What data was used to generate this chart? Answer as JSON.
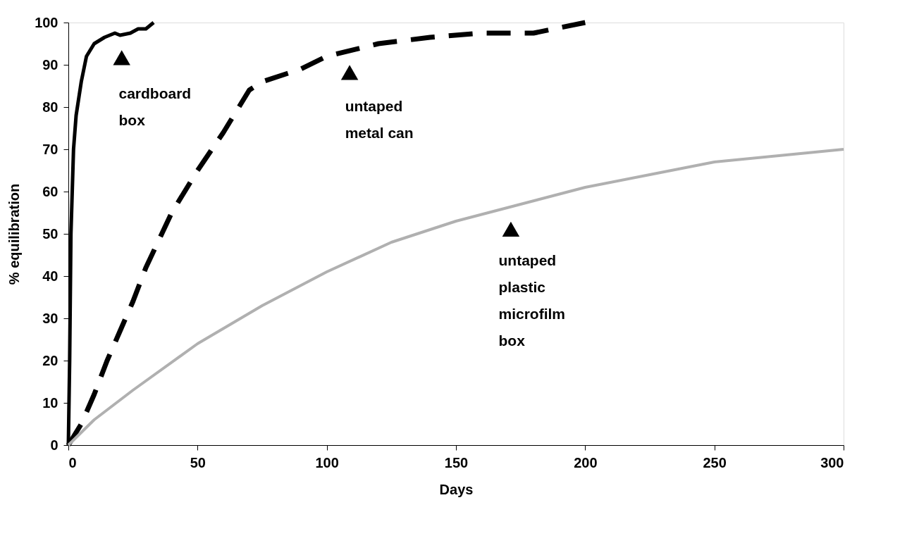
{
  "chart_data": {
    "type": "line",
    "xlabel": "Days",
    "ylabel": "% equilibration",
    "xlim": [
      0,
      300
    ],
    "xticks": [
      0,
      50,
      100,
      150,
      200,
      250,
      300
    ],
    "ylim": [
      0,
      100
    ],
    "yticks": [
      0,
      10,
      20,
      30,
      40,
      50,
      60,
      70,
      80,
      90,
      100
    ],
    "grid": false,
    "marker": "none",
    "series": [
      {
        "color": "#000000",
        "line_style": "solid",
        "x": [
          0,
          0.5,
          1,
          2,
          3,
          5,
          7,
          10,
          14,
          18,
          20,
          24,
          27,
          30,
          33
        ],
        "values": [
          0,
          20,
          50,
          70,
          78,
          86,
          92,
          95,
          96.5,
          97.5,
          97,
          97.5,
          98.5,
          98.5,
          100
        ]
      },
      {
        "color": "#000000",
        "line_style": "dashed",
        "x": [
          0,
          5,
          10,
          15,
          20,
          25,
          30,
          40,
          50,
          60,
          70,
          75,
          90,
          100,
          120,
          140,
          160,
          180,
          200
        ],
        "values": [
          0,
          5,
          12,
          20,
          27,
          34,
          42,
          55,
          65,
          74,
          84,
          86,
          89,
          92,
          95,
          96.5,
          97.5,
          97.5,
          100
        ]
      },
      {
        "color": "#b0b0b0",
        "line_style": "solid",
        "x": [
          0,
          10,
          25,
          50,
          75,
          100,
          125,
          150,
          175,
          200,
          225,
          250,
          275,
          300
        ],
        "values": [
          0,
          6,
          13,
          24,
          33,
          41,
          48,
          53,
          57,
          61,
          64,
          67,
          68.5,
          70
        ]
      }
    ],
    "annotations": [
      "cardboard\nbox",
      "untaped\nmetal can",
      "untaped\nplastic\nmicrofilm\nbox"
    ]
  }
}
